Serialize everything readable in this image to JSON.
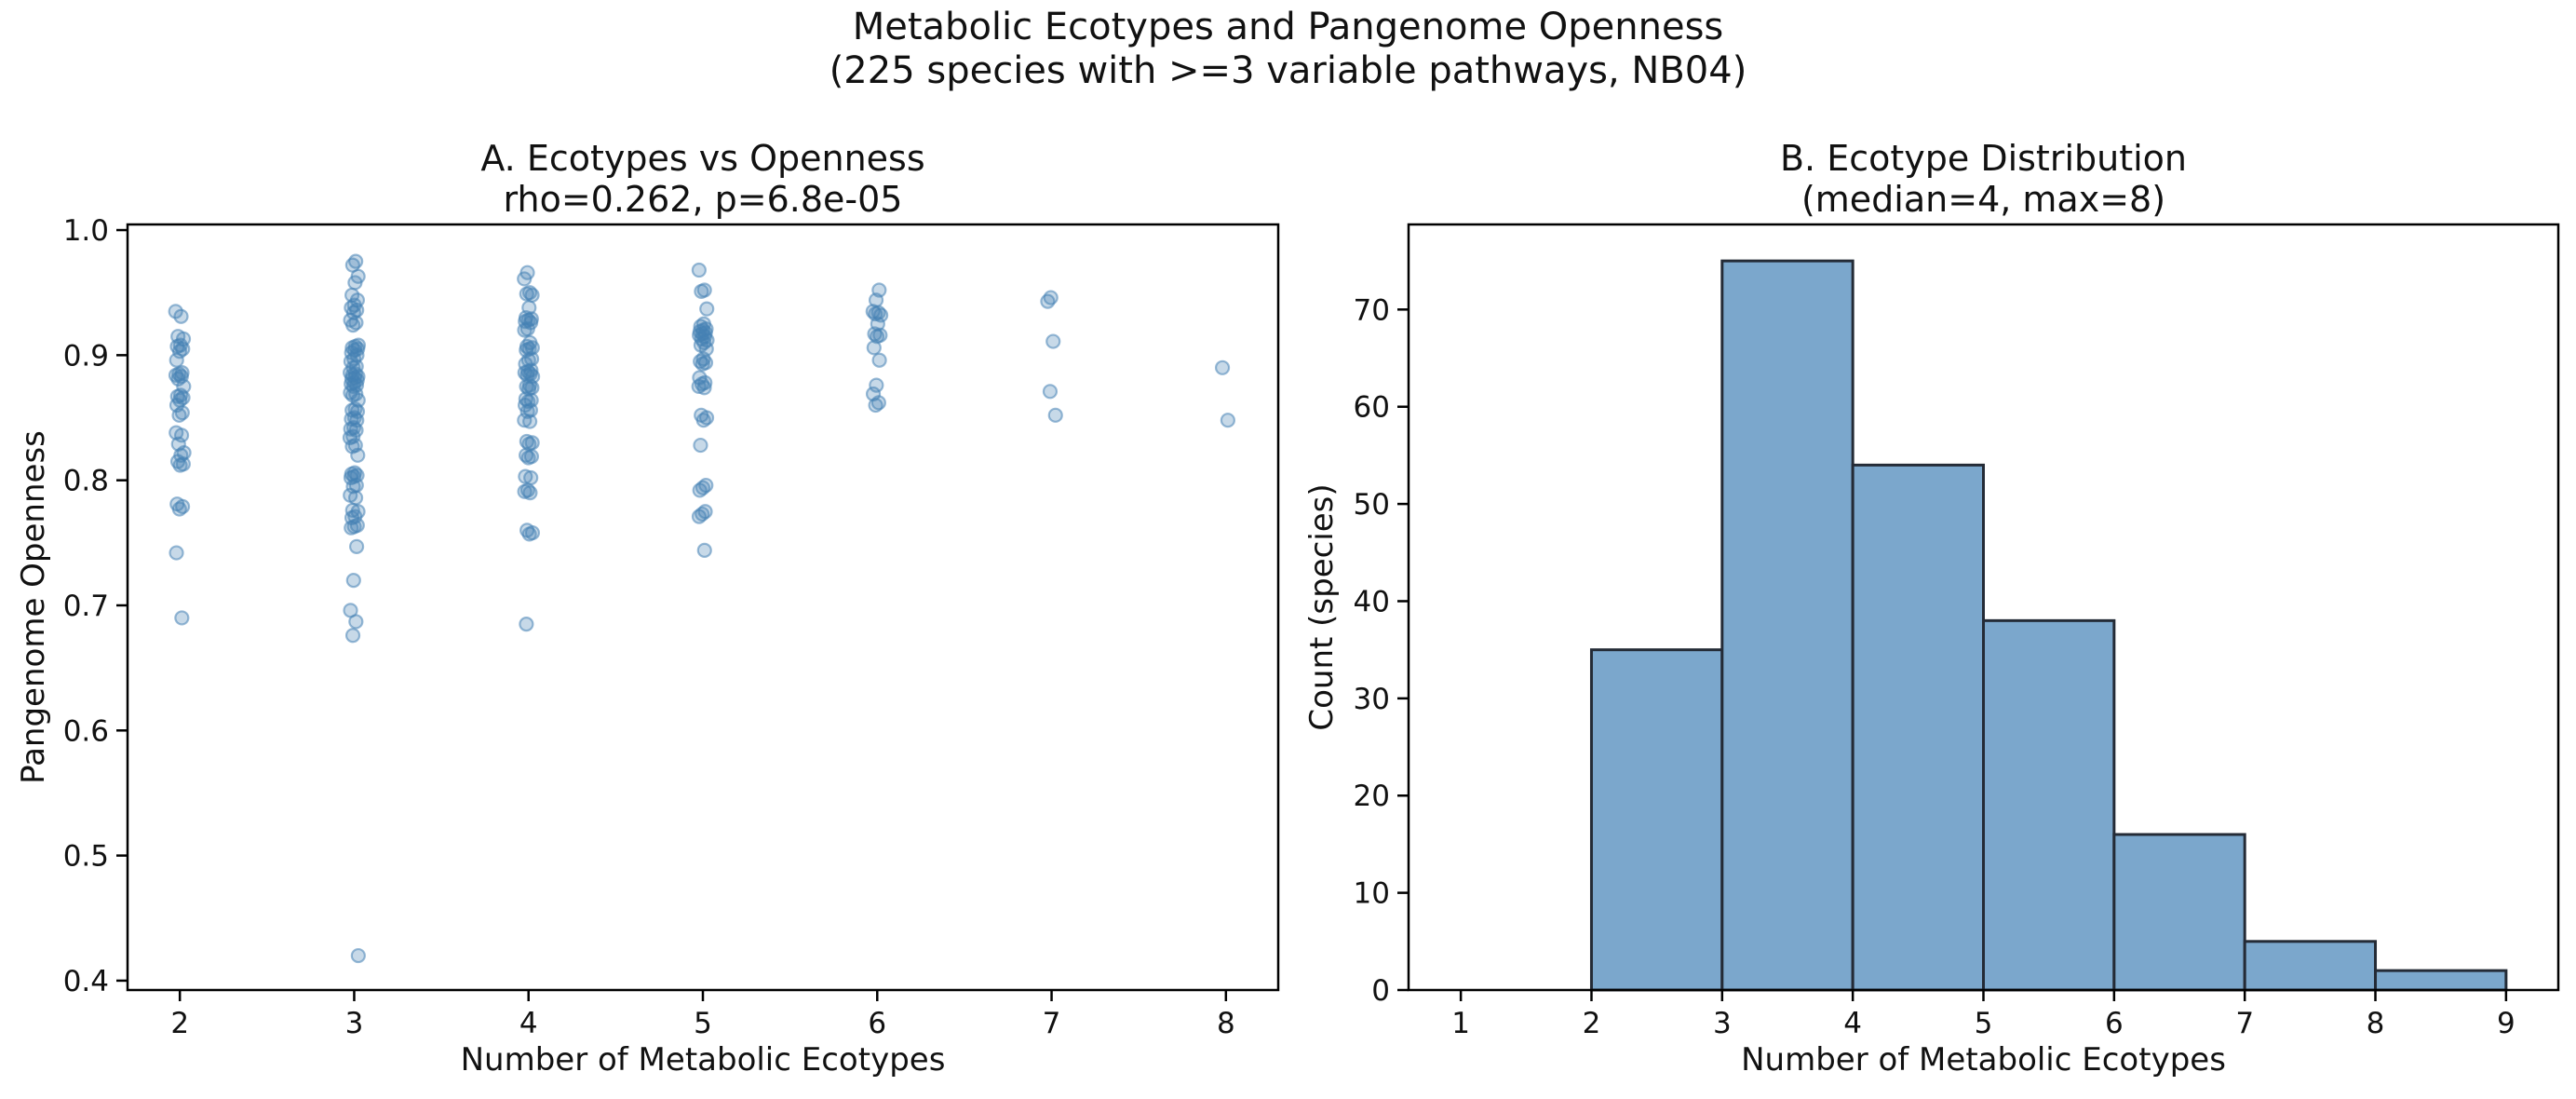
{
  "figure": {
    "suptitle_line1": "Metabolic Ecotypes and Pangenome Openness",
    "suptitle_line2": "(225 species with >=3 variable pathways, NB04)",
    "n_species": 225
  },
  "colors": {
    "scatter_point": "#4682b4",
    "hist_bar_fill": "#7ba7cc",
    "hist_bar_edge": "#242b36",
    "axis": "#000000",
    "background": "#ffffff"
  },
  "chart_data": [
    {
      "id": "A",
      "type": "scatter",
      "title": "A. Ecotypes vs Openness",
      "subtitle": "rho=0.262, p=6.8e-05",
      "stats": {
        "rho": 0.262,
        "p": "6.8e-05"
      },
      "xlabel": "Number of Metabolic Ecotypes",
      "ylabel": "Pangenome Openness",
      "xlim": [
        1.7,
        8.3
      ],
      "ylim": [
        0.3925,
        1.0045
      ],
      "xticks": [
        2,
        3,
        4,
        5,
        6,
        7,
        8
      ],
      "xtick_labels": [
        "2",
        "3",
        "4",
        "5",
        "6",
        "7",
        "8"
      ],
      "yticks": [
        0.4,
        0.5,
        0.6,
        0.7,
        0.8,
        0.9,
        1.0
      ],
      "ytick_labels": [
        "0.4",
        "0.5",
        "0.6",
        "0.7",
        "0.8",
        "0.9",
        "1.0"
      ],
      "grid": false,
      "groups": [
        {
          "x": 2,
          "ys": [
            0.935,
            0.931,
            0.915,
            0.913,
            0.908,
            0.907,
            0.905,
            0.903,
            0.896,
            0.886,
            0.885,
            0.884,
            0.883,
            0.881,
            0.875,
            0.868,
            0.867,
            0.866,
            0.864,
            0.86,
            0.854,
            0.852,
            0.838,
            0.836,
            0.829,
            0.822,
            0.82,
            0.815,
            0.813,
            0.812,
            0.781,
            0.779,
            0.777,
            0.742,
            0.69
          ]
        },
        {
          "x": 3,
          "ys": [
            0.975,
            0.972,
            0.963,
            0.958,
            0.948,
            0.944,
            0.94,
            0.938,
            0.936,
            0.934,
            0.928,
            0.926,
            0.924,
            0.908,
            0.907,
            0.906,
            0.905,
            0.904,
            0.902,
            0.9,
            0.897,
            0.895,
            0.891,
            0.89,
            0.886,
            0.885,
            0.884,
            0.883,
            0.882,
            0.881,
            0.88,
            0.878,
            0.877,
            0.876,
            0.875,
            0.87,
            0.869,
            0.868,
            0.864,
            0.857,
            0.856,
            0.855,
            0.85,
            0.849,
            0.848,
            0.842,
            0.841,
            0.84,
            0.835,
            0.834,
            0.828,
            0.827,
            0.82,
            0.806,
            0.805,
            0.804,
            0.803,
            0.802,
            0.796,
            0.795,
            0.788,
            0.786,
            0.776,
            0.775,
            0.771,
            0.77,
            0.764,
            0.763,
            0.762,
            0.747,
            0.72,
            0.696,
            0.687,
            0.676,
            0.42
          ]
        },
        {
          "x": 4,
          "ys": [
            0.966,
            0.961,
            0.95,
            0.949,
            0.948,
            0.938,
            0.93,
            0.929,
            0.928,
            0.927,
            0.926,
            0.921,
            0.92,
            0.91,
            0.907,
            0.906,
            0.905,
            0.904,
            0.897,
            0.896,
            0.893,
            0.888,
            0.887,
            0.886,
            0.885,
            0.884,
            0.883,
            0.876,
            0.875,
            0.874,
            0.873,
            0.865,
            0.864,
            0.863,
            0.86,
            0.856,
            0.855,
            0.848,
            0.847,
            0.831,
            0.83,
            0.829,
            0.82,
            0.819,
            0.818,
            0.803,
            0.802,
            0.792,
            0.791,
            0.79,
            0.76,
            0.758,
            0.757,
            0.685
          ]
        },
        {
          "x": 5,
          "ys": [
            0.968,
            0.952,
            0.951,
            0.937,
            0.925,
            0.923,
            0.921,
            0.92,
            0.919,
            0.918,
            0.917,
            0.916,
            0.915,
            0.913,
            0.912,
            0.91,
            0.908,
            0.905,
            0.897,
            0.895,
            0.894,
            0.893,
            0.882,
            0.878,
            0.877,
            0.875,
            0.874,
            0.852,
            0.85,
            0.848,
            0.828,
            0.796,
            0.794,
            0.792,
            0.775,
            0.773,
            0.771,
            0.744
          ]
        },
        {
          "x": 6,
          "ys": [
            0.952,
            0.944,
            0.935,
            0.934,
            0.933,
            0.932,
            0.925,
            0.917,
            0.916,
            0.915,
            0.906,
            0.896,
            0.876,
            0.869,
            0.862,
            0.86
          ]
        },
        {
          "x": 7,
          "ys": [
            0.946,
            0.943,
            0.911,
            0.871,
            0.852
          ]
        },
        {
          "x": 8,
          "ys": [
            0.89,
            0.848
          ]
        }
      ]
    },
    {
      "id": "B",
      "type": "bar",
      "title": "B. Ecotype Distribution",
      "subtitle": "(median=4, max=8)",
      "stats": {
        "median": 4,
        "max": 8
      },
      "xlabel": "Number of Metabolic Ecotypes",
      "ylabel": "Count (species)",
      "xlim": [
        0.6,
        9.4
      ],
      "ylim": [
        0,
        78.75
      ],
      "xticks": [
        1,
        2,
        3,
        4,
        5,
        6,
        7,
        8,
        9
      ],
      "xtick_labels": [
        "1",
        "2",
        "3",
        "4",
        "5",
        "6",
        "7",
        "8",
        "9"
      ],
      "yticks": [
        0,
        10,
        20,
        30,
        40,
        50,
        60,
        70
      ],
      "ytick_labels": [
        "0",
        "10",
        "20",
        "30",
        "40",
        "50",
        "60",
        "70"
      ],
      "grid": false,
      "bin_edges": [
        1,
        2,
        3,
        4,
        5,
        6,
        7,
        8,
        9
      ],
      "counts": [
        0,
        35,
        75,
        54,
        38,
        16,
        5,
        2
      ]
    }
  ]
}
